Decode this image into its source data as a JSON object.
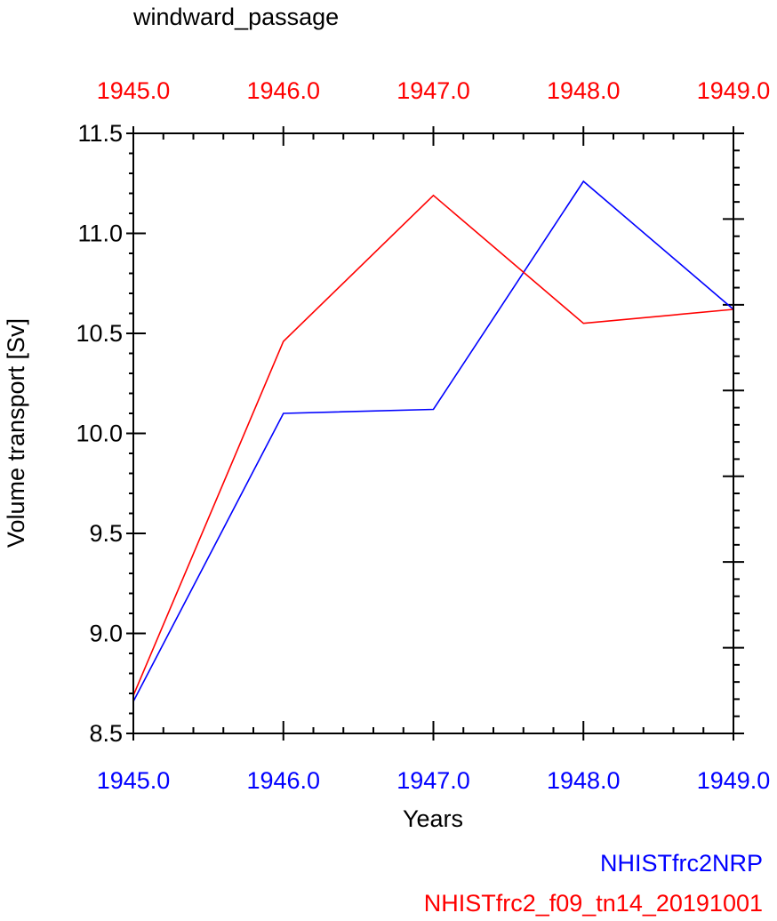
{
  "chart_data": {
    "type": "line",
    "title": "windward_passage",
    "xlabel": "Years",
    "ylabel": "Volume transport [Sv]",
    "x": [
      1945,
      1946,
      1947,
      1948,
      1949
    ],
    "xlim": [
      1945,
      1949
    ],
    "ylim": [
      8.5,
      11.5
    ],
    "x_tick_labels": [
      "1945.0",
      "1946.0",
      "1947.0",
      "1948.0",
      "1949.0"
    ],
    "y_tick_labels": [
      "8.5",
      "9.0",
      "9.5",
      "10.0",
      "10.5",
      "11.0",
      "11.5"
    ],
    "y_ticks": [
      8.5,
      9.0,
      9.5,
      10.0,
      10.5,
      11.0,
      11.5
    ],
    "grid": false,
    "series": [
      {
        "name": "NHISTfrc2NRP",
        "color": "#0000ff",
        "values": [
          8.66,
          10.1,
          10.12,
          11.26,
          10.62
        ]
      },
      {
        "name": "NHISTfrc2_f09_tn14_20191001",
        "color": "#ff0000",
        "values": [
          8.69,
          10.46,
          11.19,
          10.55,
          10.62
        ]
      }
    ]
  }
}
